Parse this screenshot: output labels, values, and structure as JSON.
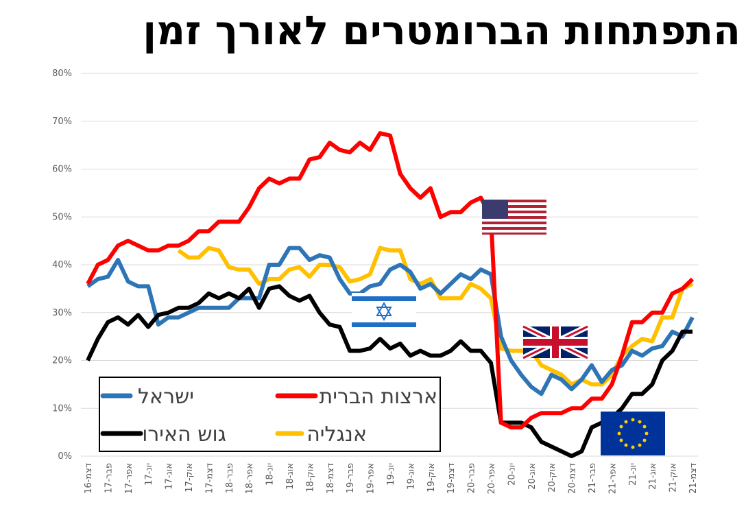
{
  "chart_data": {
    "type": "line",
    "title": "התפתחות הברומטרים לאורך זמן",
    "categories": [
      "דצמ-16",
      null,
      "פבר-17",
      null,
      "אפר-17",
      null,
      "יונ-17",
      null,
      "אוג-17",
      null,
      "אוק-17",
      null,
      "דצמ-17",
      null,
      "פבר-18",
      null,
      "אפר-18",
      null,
      "יונ-18",
      null,
      "אוג-18",
      null,
      "אוק-18",
      null,
      "דצמ-18",
      null,
      "פבר-19",
      null,
      "אפר-19",
      null,
      "יונ-19",
      null,
      "אוג-19",
      null,
      "אוק-19",
      null,
      "דצמ-19",
      null,
      "פבר-20",
      null,
      "אפר-20",
      null,
      "יונ-20",
      null,
      "אוג-20",
      null,
      "אוק-20",
      null,
      "דצמ-20",
      null,
      "פבר-21",
      null,
      "אפר-21",
      null,
      "יונ-21",
      null,
      "אוג-21",
      null,
      "אוק-21",
      null,
      "דצמ-21"
    ],
    "series": [
      {
        "name": "ישראל",
        "color": "#2e75b6",
        "values": [
          35.5,
          37,
          37.5,
          41,
          36.5,
          35.5,
          35.5,
          27.5,
          29,
          29,
          30,
          31,
          31,
          31,
          31,
          33,
          33,
          33,
          40,
          40,
          43.5,
          43.5,
          41,
          42,
          41.5,
          37,
          34,
          34,
          35.5,
          36,
          39,
          40,
          38.5,
          35,
          36,
          34,
          36,
          38,
          37,
          39,
          38,
          25,
          20,
          17,
          14.5,
          13,
          17,
          16,
          14,
          16,
          19,
          15.5,
          18,
          19,
          22,
          21,
          22.5,
          23,
          26,
          25,
          29
        ]
      },
      {
        "name": "ארצות הברית",
        "color": "#ff0000",
        "values": [
          36,
          40,
          41,
          44,
          45,
          44,
          43,
          43,
          44,
          44,
          45,
          47,
          47,
          49,
          49,
          49,
          52,
          56,
          58,
          57,
          58,
          58,
          62,
          62.5,
          65.5,
          64,
          63.5,
          65.5,
          64,
          67.5,
          67,
          59,
          56,
          54,
          56,
          50,
          51,
          51,
          53,
          54,
          50,
          7,
          6,
          6,
          8,
          9,
          9,
          9,
          10,
          10,
          12,
          12,
          15,
          21,
          28,
          28,
          30,
          30,
          34,
          35,
          37
        ]
      },
      {
        "name": "גוש האירו",
        "color": "#000000",
        "values": [
          20,
          24.5,
          28,
          29,
          27.5,
          29.5,
          27,
          29.5,
          30,
          31,
          31,
          32,
          34,
          33,
          34,
          33,
          35,
          31,
          35,
          35.5,
          33.5,
          32.5,
          33.5,
          30,
          27.5,
          27,
          22,
          22,
          22.5,
          24.5,
          22.5,
          23.5,
          21,
          22,
          21,
          21,
          22,
          24,
          22,
          22,
          19.5,
          7,
          7,
          7,
          6,
          3,
          2,
          1,
          0,
          1,
          6,
          7,
          8,
          10,
          13,
          13,
          15,
          20,
          22,
          26,
          26
        ]
      },
      {
        "name": "אנגליה",
        "color": "#ffc000",
        "values": [
          null,
          null,
          null,
          null,
          null,
          null,
          null,
          null,
          null,
          43,
          41.5,
          41.5,
          43.5,
          43,
          39.5,
          39,
          39,
          36,
          37,
          37,
          39,
          39.5,
          37.5,
          40,
          40,
          39.5,
          36.5,
          37,
          38,
          43.5,
          43,
          43,
          37,
          36,
          37,
          33,
          33,
          33,
          36,
          35,
          33,
          22.5,
          22,
          22,
          22,
          19,
          18,
          17,
          15,
          16,
          15,
          15,
          17,
          21,
          23,
          24.5,
          24,
          29,
          29,
          35,
          36
        ]
      }
    ],
    "ylim": [
      0,
      80
    ],
    "yticks": [
      {
        "value": 0,
        "label": "0%"
      },
      {
        "value": 10,
        "label": "10%"
      },
      {
        "value": 20,
        "label": "20%"
      },
      {
        "value": 30,
        "label": "30%"
      },
      {
        "value": 40,
        "label": "40%"
      },
      {
        "value": 50,
        "label": "50%"
      },
      {
        "value": 60,
        "label": "60%"
      },
      {
        "value": 70,
        "label": "70%"
      },
      {
        "value": 80,
        "label": "80%"
      }
    ],
    "grid": true
  }
}
